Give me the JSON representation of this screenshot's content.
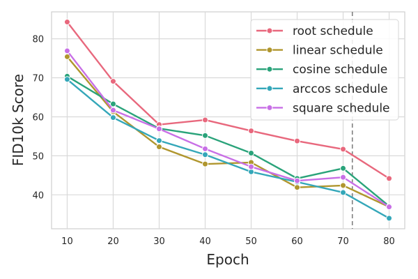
{
  "chart_data": {
    "type": "line",
    "xlabel": "Epoch",
    "ylabel": "FID10k Score",
    "x": [
      10,
      20,
      30,
      40,
      50,
      60,
      70,
      80
    ],
    "xlim": [
      6.6,
      83.4
    ],
    "ylim": [
      31.3,
      86.9
    ],
    "xticks": [
      10,
      20,
      30,
      40,
      50,
      60,
      70,
      80
    ],
    "yticks": [
      40,
      50,
      60,
      70,
      80
    ],
    "grid": true,
    "legend_position": "top-right",
    "vline": {
      "x": 72,
      "style": "dashed",
      "color": "#7f7f7f"
    },
    "series": [
      {
        "name": "root schedule",
        "color": "#e8687d",
        "values": [
          84.3,
          69.1,
          58.0,
          59.2,
          56.4,
          53.8,
          51.7,
          44.2
        ]
      },
      {
        "name": "linear schedule",
        "color": "#b0962e",
        "values": [
          75.4,
          61.3,
          52.3,
          47.9,
          48.3,
          41.9,
          42.4,
          36.9
        ]
      },
      {
        "name": "cosine schedule",
        "color": "#2aa37a",
        "values": [
          70.4,
          63.3,
          57.0,
          55.2,
          50.7,
          44.2,
          46.8,
          37.1
        ]
      },
      {
        "name": "arccos schedule",
        "color": "#34a7b9",
        "values": [
          69.6,
          59.8,
          53.9,
          50.3,
          45.9,
          43.3,
          40.6,
          34.0
        ]
      },
      {
        "name": "square schedule",
        "color": "#c86fe6",
        "values": [
          76.9,
          61.7,
          56.9,
          51.8,
          47.2,
          43.6,
          44.5,
          36.9
        ]
      }
    ]
  }
}
